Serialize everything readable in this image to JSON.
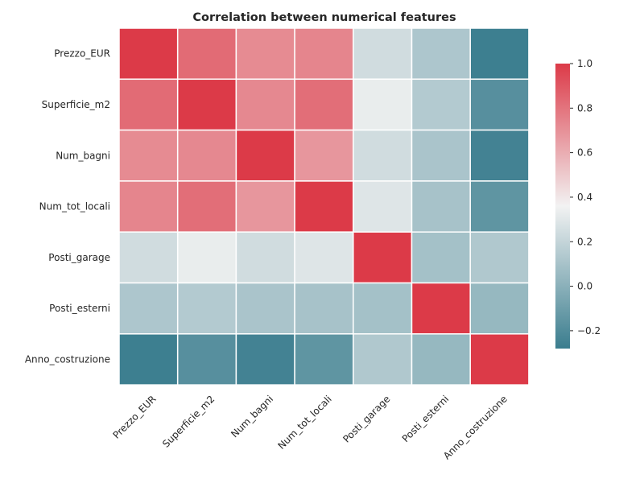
{
  "chart_data": {
    "type": "heatmap",
    "title": "Correlation between numerical features",
    "rows": [
      "Prezzo_EUR",
      "Superficie_m2",
      "Num_bagni",
      "Num_tot_locali",
      "Posti_garage",
      "Posti_esterni",
      "Anno_costruzione"
    ],
    "columns": [
      "Prezzo_EUR",
      "Superficie_m2",
      "Num_bagni",
      "Num_tot_locali",
      "Posti_garage",
      "Posti_esterni",
      "Anno_costruzione"
    ],
    "values": [
      [
        1.0,
        0.83,
        0.72,
        0.74,
        0.24,
        0.12,
        -0.27
      ],
      [
        0.83,
        1.0,
        0.73,
        0.82,
        0.33,
        0.14,
        -0.18
      ],
      [
        0.72,
        0.73,
        1.0,
        0.68,
        0.24,
        0.11,
        -0.25
      ],
      [
        0.74,
        0.82,
        0.68,
        1.0,
        0.29,
        0.1,
        -0.15
      ],
      [
        0.24,
        0.33,
        0.24,
        0.29,
        1.0,
        0.09,
        0.13
      ],
      [
        0.12,
        0.14,
        0.11,
        0.1,
        0.09,
        1.0,
        0.04
      ],
      [
        -0.27,
        -0.18,
        -0.25,
        -0.15,
        0.13,
        0.04,
        1.0
      ]
    ],
    "colorbar": {
      "range": [
        -0.28,
        1.0
      ],
      "ticks": [
        "1.0",
        "0.8",
        "0.6",
        "0.4",
        "0.2",
        "0.0",
        "−0.2"
      ],
      "tick_values": [
        1.0,
        0.8,
        0.6,
        0.4,
        0.2,
        0.0,
        -0.2
      ]
    },
    "colors": {
      "low": "#3a7d8e",
      "mid": "#f2f2f2",
      "high": "#dc3a48",
      "cell_border": "#ffffff"
    },
    "grid": false,
    "legend": "right"
  }
}
